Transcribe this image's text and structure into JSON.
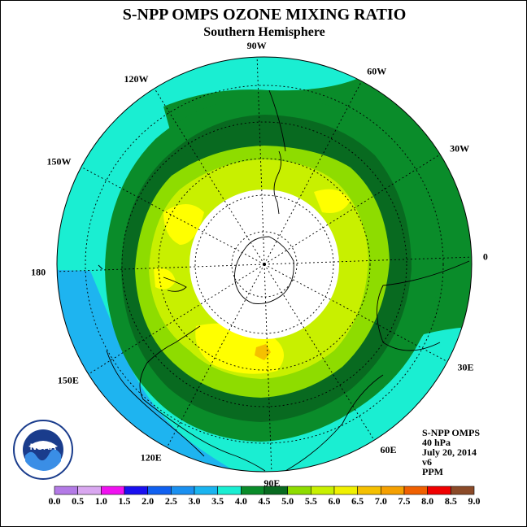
{
  "header": {
    "title": "S-NPP OMPS OZONE MIXING RATIO",
    "subtitle": "Southern Hemisphere"
  },
  "map": {
    "projection": "south polar stereographic",
    "longitude_labels": [
      "90W",
      "60W",
      "30W",
      "0",
      "30E",
      "60E",
      "90E",
      "120E",
      "150E",
      "180",
      "150W",
      "120W"
    ],
    "colors": {
      "outer_ring": "#1aeed2",
      "lower_left_band": "#1eb4f0",
      "ring_4_0": "#0a8c2a",
      "ring_4_5": "#086a20",
      "ring_5_0": "#8edc00",
      "ring_5_5": "#c8f000",
      "ring_6_0": "#ffff00",
      "hotspot": "#f5c000",
      "no_data": "#ffffff"
    }
  },
  "info": {
    "instrument": "S-NPP OMPS",
    "level": "40 hPa",
    "date": "July 20, 2014",
    "version": "v6",
    "units": "PPM"
  },
  "colorbar": {
    "labels": [
      "0.0",
      "0.5",
      "1.0",
      "1.5",
      "2.0",
      "2.5",
      "3.0",
      "3.5",
      "4.0",
      "4.5",
      "5.0",
      "5.5",
      "6.0",
      "6.5",
      "7.0",
      "7.5",
      "8.0",
      "8.5",
      "9.0"
    ],
    "colors": [
      "#b37ae6",
      "#d9a7f0",
      "#f011f0",
      "#1a10f0",
      "#1060f0",
      "#1a90f0",
      "#1ab4f0",
      "#1aeed2",
      "#0a8c2a",
      "#086a20",
      "#8edc00",
      "#c8f000",
      "#f0f000",
      "#f5c000",
      "#f5a000",
      "#f06000",
      "#f00000",
      "#8b4a28"
    ]
  },
  "logo": {
    "text": "NOAA",
    "ring_text": "NATIONAL OCEANIC AND ATMOSPHERIC ADMINISTRATION · U.S. DEPARTMENT OF COMMERCE"
  }
}
